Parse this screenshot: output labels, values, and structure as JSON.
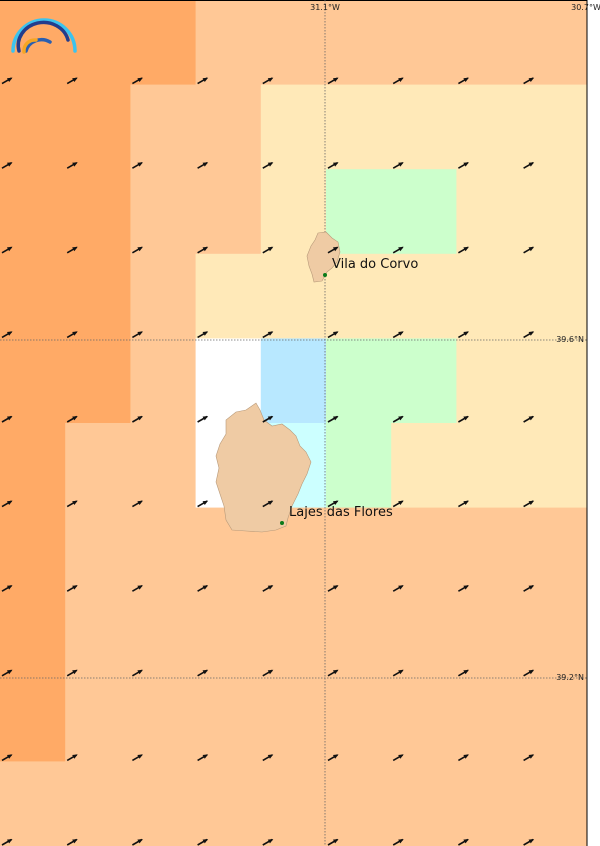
{
  "palette": {
    "D": "#ffaa66",
    "L": "#ffc896",
    "Y": "#ffe9b8",
    "G": "#ccffcc",
    "W": "#ffffff",
    "B": "#b8e8ff",
    "C": "#ccffff"
  },
  "cells": [
    "DDDLLLLLL",
    "DDLLYYYYY",
    "DDLLYGGYY",
    "DDLYYYYYY",
    "DDLWBGGYY",
    "DLLWCGYYY",
    "DLLLLLLLL",
    "DLLLLLLLL",
    "DLLLLLLLL",
    "LLLLLLLLL"
  ],
  "wind_direction_deg": 60,
  "graticule": {
    "lon_labels": [
      "31.1°W",
      "30.7°W"
    ],
    "lat_labels": [
      "39.6°N",
      "39.2°N"
    ]
  },
  "places": [
    {
      "name": "Vila do Corvo"
    },
    {
      "name": "Lajes das Flores"
    }
  ],
  "land_color": "#efcba4",
  "logo": "weather-rainbow-logo"
}
